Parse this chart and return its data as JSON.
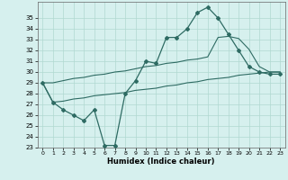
{
  "title": "",
  "xlabel": "Humidex (Indice chaleur)",
  "xlim": [
    -0.5,
    23.5
  ],
  "ylim": [
    23,
    36
  ],
  "yticks": [
    23,
    24,
    25,
    26,
    27,
    28,
    29,
    30,
    31,
    32,
    33,
    34,
    35
  ],
  "xticks": [
    0,
    1,
    2,
    3,
    4,
    5,
    6,
    7,
    8,
    9,
    10,
    11,
    12,
    13,
    14,
    15,
    16,
    17,
    18,
    19,
    20,
    21,
    22,
    23
  ],
  "bg_color": "#d6f0ee",
  "grid_color": "#b0d8d0",
  "line_color": "#2e6b63",
  "main_y": [
    29.0,
    27.2,
    26.5,
    26.0,
    25.5,
    26.5,
    23.2,
    23.2,
    28.0,
    29.2,
    31.0,
    30.8,
    33.2,
    33.2,
    34.0,
    35.5,
    36.0,
    35.0,
    33.5,
    32.0,
    30.5,
    30.0,
    29.8,
    29.8
  ],
  "upper_y": [
    29.0,
    29.0,
    29.2,
    29.4,
    29.5,
    29.7,
    29.8,
    30.0,
    30.1,
    30.3,
    30.5,
    30.6,
    30.8,
    30.9,
    31.1,
    31.2,
    31.4,
    33.2,
    33.3,
    33.1,
    32.1,
    30.5,
    30.0,
    30.0
  ],
  "lower_y": [
    29.0,
    27.2,
    27.3,
    27.5,
    27.6,
    27.8,
    27.9,
    28.0,
    28.1,
    28.3,
    28.4,
    28.5,
    28.7,
    28.8,
    29.0,
    29.1,
    29.3,
    29.4,
    29.5,
    29.7,
    29.8,
    29.9,
    30.0,
    30.0
  ]
}
